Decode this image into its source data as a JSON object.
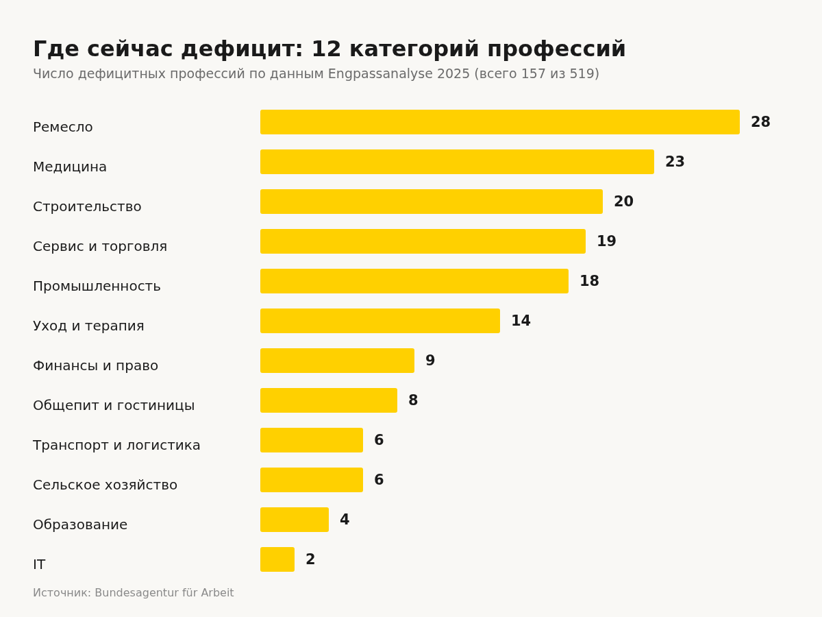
{
  "chart_data": {
    "type": "bar",
    "orientation": "horizontal",
    "title": "Где сейчас дефицит: 12 категорий профессий",
    "subtitle": "Число дефицитных профессий по данным Engpassanalyse 2025 (всего 157 из 519)",
    "categories": [
      "Ремесло",
      "Медицина",
      "Строительство",
      "Сервис и торговля",
      "Промышленность",
      "Уход и терапия",
      "Финансы и право",
      "Общепит и гостиницы",
      "Транспорт и логистика",
      "Сельское хозяйство",
      "Образование",
      "IT"
    ],
    "values": [
      28,
      23,
      20,
      19,
      18,
      14,
      9,
      8,
      6,
      6,
      4,
      2
    ],
    "color": "#ffd000",
    "data_labels": true,
    "annotations": [
      "Источник: Bundesagentur für Arbeit"
    ]
  }
}
